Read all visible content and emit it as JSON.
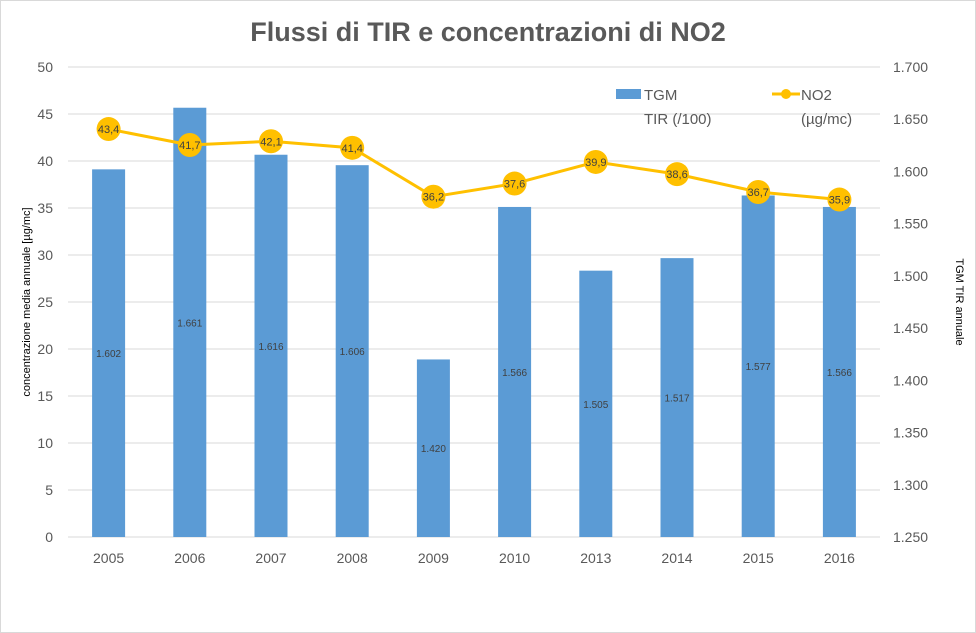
{
  "chart_data": {
    "type": "bar+line",
    "title": "Flussi di TIR e concentrazioni di NO2",
    "categories": [
      "2005",
      "2006",
      "2007",
      "2008",
      "2009",
      "2010",
      "2013",
      "2014",
      "2015",
      "2016"
    ],
    "series": [
      {
        "name": "TGM TIR (/100)",
        "legend_line1": "TGM",
        "legend_line2": "TIR (/100)",
        "type": "bar",
        "axis": "right",
        "color": "#5b9bd5",
        "values": [
          1602,
          1661,
          1616,
          1606,
          1420,
          1566,
          1505,
          1517,
          1577,
          1566
        ],
        "labels": [
          "1.602",
          "1.661",
          "1.616",
          "1.606",
          "1.420",
          "1.566",
          "1.505",
          "1.517",
          "1.577",
          "1.566"
        ]
      },
      {
        "name": "NO2 (µg/mc)",
        "legend_line1": "NO2",
        "legend_line2": "(µg/mc)",
        "type": "line",
        "axis": "left",
        "color": "#ffc000",
        "values": [
          43.4,
          41.7,
          42.1,
          41.4,
          36.2,
          37.6,
          39.9,
          38.6,
          36.7,
          35.9
        ],
        "labels": [
          "43,4",
          "41,7",
          "42,1",
          "41,4",
          "36,2",
          "37,6",
          "39,9",
          "38,6",
          "36,7",
          "35,9"
        ]
      }
    ],
    "ylabel": "concentrazione media annuale [µg/mc]",
    "y2label": "TGM TIR annuale",
    "ylim": [
      0,
      50
    ],
    "y2lim": [
      1250,
      1700
    ],
    "yticks": [
      "0",
      "5",
      "10",
      "15",
      "20",
      "25",
      "30",
      "35",
      "40",
      "45",
      "50"
    ],
    "y2ticks": [
      "1.250",
      "1.300",
      "1.350",
      "1.400",
      "1.450",
      "1.500",
      "1.550",
      "1.600",
      "1.650",
      "1.700"
    ],
    "grid": true,
    "legend": "top-right"
  }
}
